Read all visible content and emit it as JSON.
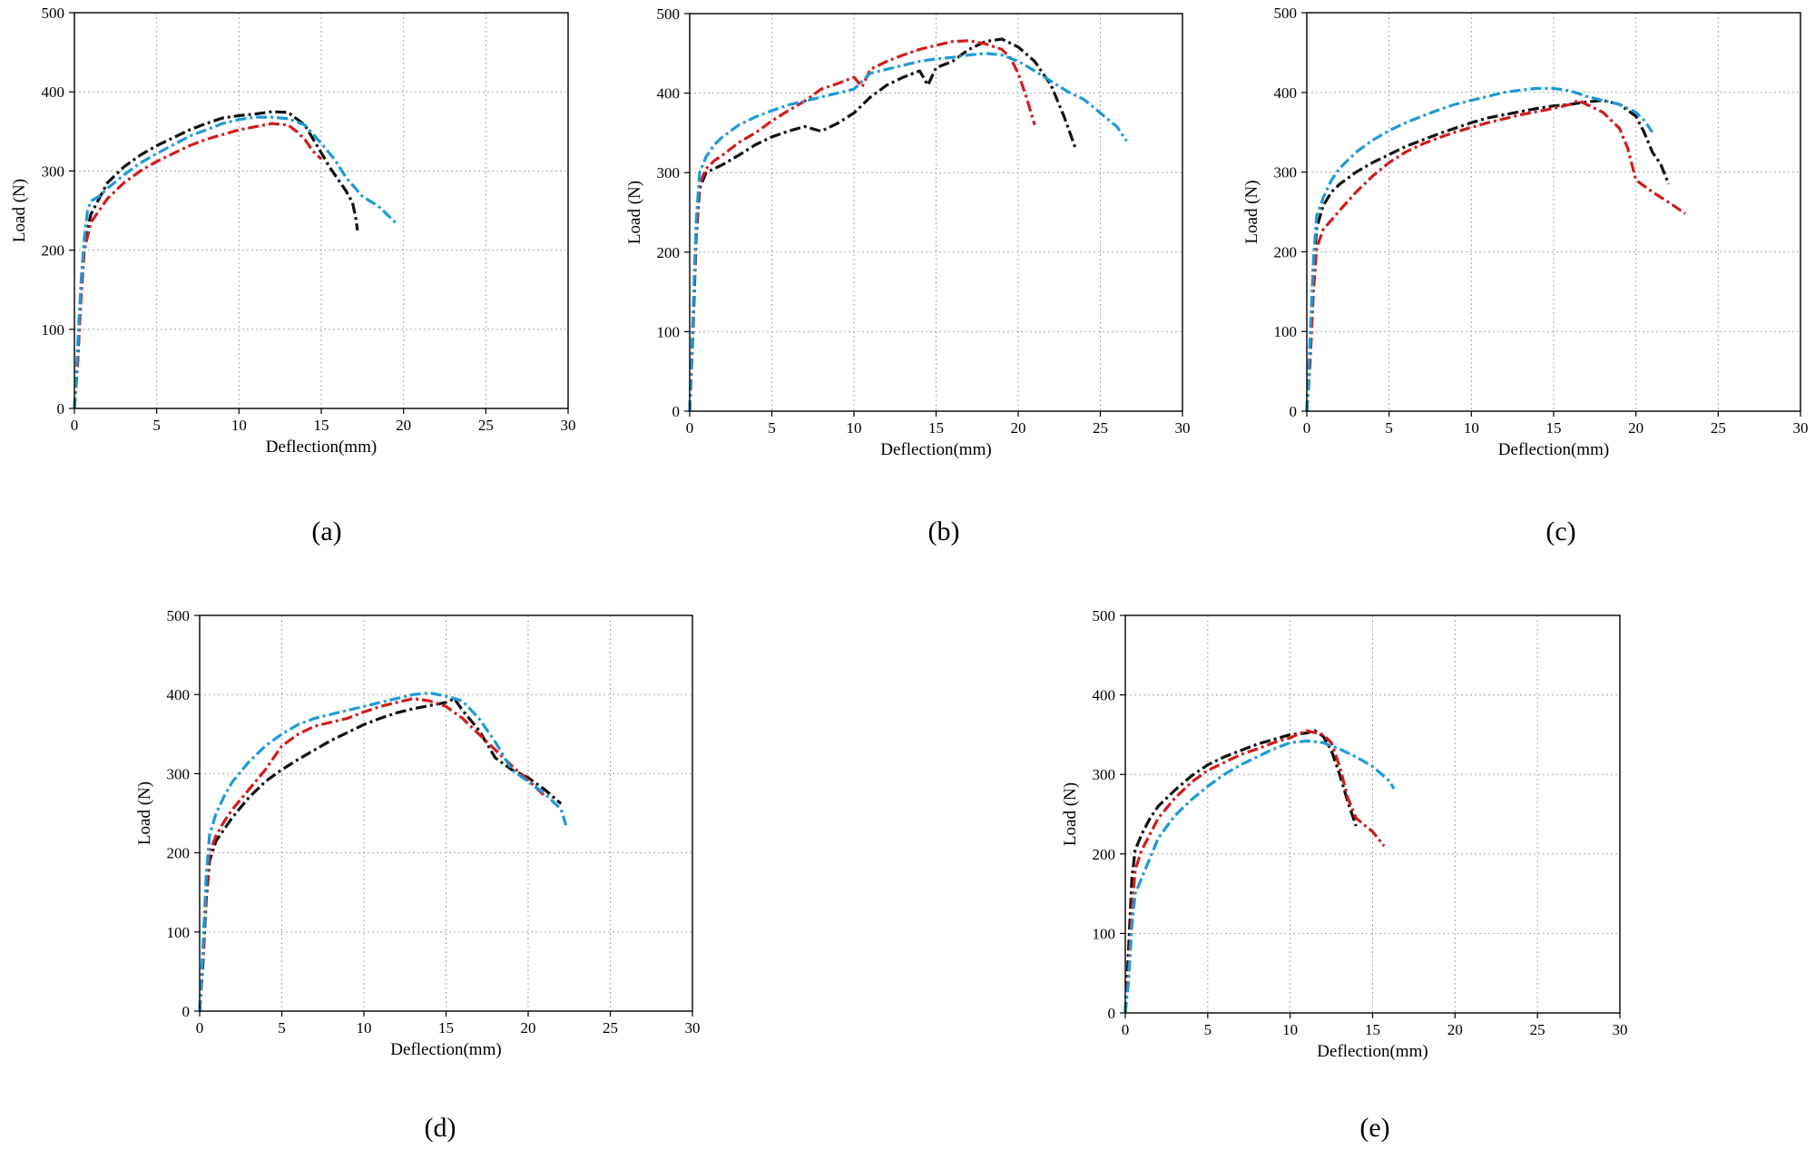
{
  "figure": {
    "colors": {
      "black": "#111111",
      "red": "#d01c1c",
      "blue": "#1e9ad6",
      "grid": "#a8a8a8"
    }
  },
  "chart_data": [
    {
      "type": "line",
      "label": "(a)",
      "xlabel": "Deflection(mm)",
      "ylabel": "Load (N)",
      "xlim": [
        0,
        30
      ],
      "ylim": [
        0,
        500
      ],
      "xticks": [
        0,
        5,
        10,
        15,
        20,
        25,
        30
      ],
      "yticks": [
        0,
        100,
        200,
        300,
        400,
        500
      ],
      "grid": true,
      "series": [
        {
          "name": "black",
          "color": "#111111",
          "style": "dashdot",
          "x": [
            0,
            0.2,
            0.4,
            0.6,
            1,
            1.5,
            2,
            3,
            4,
            5,
            6,
            7,
            8,
            9,
            10,
            11,
            12,
            13,
            14,
            14.8,
            15.5,
            16,
            16.5,
            16.9,
            17.1,
            17.2
          ],
          "y": [
            0,
            60,
            150,
            210,
            245,
            265,
            285,
            305,
            320,
            332,
            342,
            352,
            360,
            367,
            370,
            372,
            375,
            374,
            358,
            330,
            305,
            290,
            275,
            260,
            240,
            225
          ]
        },
        {
          "name": "red",
          "color": "#d01c1c",
          "style": "dashdot",
          "x": [
            0,
            0.2,
            0.4,
            0.6,
            1,
            1.5,
            2,
            3,
            4,
            5,
            6,
            7,
            8,
            9,
            10,
            11,
            12,
            13,
            13.5,
            14,
            14.5,
            15
          ],
          "y": [
            0,
            60,
            140,
            200,
            235,
            250,
            265,
            285,
            300,
            312,
            322,
            332,
            340,
            346,
            352,
            356,
            360,
            358,
            350,
            340,
            325,
            315
          ]
        },
        {
          "name": "blue",
          "color": "#1e9ad6",
          "style": "dashdot",
          "x": [
            0,
            0.2,
            0.4,
            0.6,
            0.8,
            1,
            1.5,
            2,
            3,
            4,
            5,
            6,
            7,
            8,
            9,
            10,
            11,
            12,
            13,
            14,
            15,
            15.8,
            16.5,
            17.5,
            18.5,
            19.5
          ],
          "y": [
            0,
            80,
            160,
            215,
            250,
            262,
            268,
            278,
            295,
            310,
            322,
            333,
            344,
            352,
            360,
            365,
            368,
            368,
            366,
            358,
            335,
            315,
            292,
            268,
            255,
            235
          ]
        }
      ]
    },
    {
      "type": "line",
      "label": "(b)",
      "xlabel": "Deflection(mm)",
      "ylabel": "Load (N)",
      "xlim": [
        0,
        30
      ],
      "ylim": [
        0,
        500
      ],
      "xticks": [
        0,
        5,
        10,
        15,
        20,
        25,
        30
      ],
      "yticks": [
        0,
        100,
        200,
        300,
        400,
        500
      ],
      "grid": true,
      "series": [
        {
          "name": "black",
          "color": "#111111",
          "style": "dashdot",
          "x": [
            0,
            0.2,
            0.4,
            0.6,
            1,
            1.5,
            2,
            3,
            4,
            5,
            6,
            7,
            8,
            9,
            10,
            11,
            12,
            13,
            14,
            14.5,
            15,
            16,
            17,
            18,
            19,
            20,
            21,
            22,
            22.8,
            23.5
          ],
          "y": [
            0,
            100,
            220,
            280,
            300,
            305,
            310,
            322,
            335,
            345,
            352,
            358,
            352,
            362,
            375,
            395,
            410,
            420,
            428,
            410,
            432,
            440,
            455,
            465,
            468,
            458,
            440,
            410,
            370,
            330
          ]
        },
        {
          "name": "red",
          "color": "#d01c1c",
          "style": "dashdot",
          "x": [
            0,
            0.2,
            0.4,
            0.6,
            1,
            1.5,
            2,
            3,
            4,
            5,
            6,
            7,
            8,
            9,
            10,
            10.5,
            11,
            12,
            13,
            14,
            15,
            16,
            17,
            18,
            19,
            19.5,
            20,
            20.5,
            21
          ],
          "y": [
            0,
            110,
            230,
            285,
            305,
            315,
            322,
            338,
            350,
            365,
            378,
            390,
            405,
            412,
            420,
            408,
            430,
            440,
            448,
            455,
            460,
            465,
            466,
            462,
            455,
            445,
            425,
            395,
            360
          ]
        },
        {
          "name": "blue",
          "color": "#1e9ad6",
          "style": "dashdot",
          "x": [
            0,
            0.2,
            0.4,
            0.6,
            1,
            1.5,
            2,
            3,
            4,
            5,
            6,
            7,
            8,
            9,
            10,
            11,
            12,
            13,
            14,
            15,
            16,
            17,
            18,
            19,
            20,
            21,
            22,
            23,
            24,
            25,
            26,
            26.6
          ],
          "y": [
            0,
            120,
            240,
            300,
            320,
            335,
            345,
            360,
            370,
            378,
            385,
            390,
            395,
            400,
            405,
            425,
            430,
            435,
            440,
            443,
            445,
            448,
            450,
            448,
            440,
            428,
            415,
            402,
            392,
            375,
            358,
            340
          ]
        }
      ]
    },
    {
      "type": "line",
      "label": "(c)",
      "xlabel": "Deflection(mm)",
      "ylabel": "Load (N)",
      "xlim": [
        0,
        30
      ],
      "ylim": [
        0,
        500
      ],
      "xticks": [
        0,
        5,
        10,
        15,
        20,
        25,
        30
      ],
      "yticks": [
        0,
        100,
        200,
        300,
        400,
        500
      ],
      "grid": true,
      "series": [
        {
          "name": "black",
          "color": "#111111",
          "style": "dashdot",
          "x": [
            0,
            0.2,
            0.4,
            0.6,
            1,
            1.5,
            2,
            3,
            4,
            5,
            6,
            7,
            8,
            9,
            10,
            11,
            12,
            13,
            14,
            15,
            16,
            17,
            18,
            19,
            20,
            20.5,
            21,
            21.5,
            22
          ],
          "y": [
            0,
            80,
            180,
            230,
            258,
            275,
            285,
            300,
            312,
            322,
            332,
            340,
            348,
            355,
            362,
            368,
            372,
            376,
            380,
            383,
            385,
            388,
            390,
            385,
            370,
            350,
            325,
            310,
            285
          ]
        },
        {
          "name": "red",
          "color": "#d01c1c",
          "style": "dashdot",
          "x": [
            0,
            0.2,
            0.4,
            0.6,
            1,
            1.5,
            2,
            3,
            4,
            5,
            6,
            7,
            8,
            9,
            10,
            11,
            12,
            13,
            14,
            15,
            16,
            16.5,
            17,
            18,
            19,
            19.5,
            20,
            21,
            22,
            23
          ],
          "y": [
            0,
            60,
            150,
            205,
            228,
            240,
            252,
            275,
            295,
            312,
            325,
            335,
            343,
            350,
            356,
            362,
            367,
            372,
            376,
            380,
            385,
            390,
            385,
            375,
            355,
            330,
            290,
            275,
            262,
            248
          ]
        },
        {
          "name": "blue",
          "color": "#1e9ad6",
          "style": "dashdot",
          "x": [
            0,
            0.2,
            0.4,
            0.6,
            1,
            1.5,
            2,
            3,
            4,
            5,
            6,
            7,
            8,
            9,
            10,
            11,
            12,
            13,
            14,
            15,
            16,
            17,
            18,
            19,
            20,
            20.5,
            21
          ],
          "y": [
            0,
            90,
            190,
            245,
            268,
            290,
            305,
            325,
            340,
            352,
            362,
            370,
            378,
            385,
            390,
            395,
            400,
            403,
            405,
            405,
            402,
            395,
            390,
            385,
            375,
            365,
            350
          ]
        }
      ]
    },
    {
      "type": "line",
      "label": "(d)",
      "xlabel": "Deflection(mm)",
      "ylabel": "Load (N)",
      "xlim": [
        0,
        30
      ],
      "ylim": [
        0,
        500
      ],
      "xticks": [
        0,
        5,
        10,
        15,
        20,
        25,
        30
      ],
      "yticks": [
        0,
        100,
        200,
        300,
        400,
        500
      ],
      "grid": true,
      "series": [
        {
          "name": "black",
          "color": "#111111",
          "style": "dashdot",
          "x": [
            0,
            0.2,
            0.4,
            0.6,
            1,
            1.5,
            2,
            3,
            4,
            5,
            6,
            7,
            8,
            9,
            10,
            11,
            12,
            13,
            14,
            15,
            15.5,
            16,
            17,
            18,
            19,
            20,
            21,
            22
          ],
          "y": [
            0,
            60,
            140,
            190,
            215,
            230,
            245,
            270,
            290,
            305,
            318,
            330,
            342,
            352,
            362,
            370,
            377,
            382,
            386,
            390,
            395,
            380,
            355,
            320,
            305,
            295,
            280,
            262
          ]
        },
        {
          "name": "red",
          "color": "#d01c1c",
          "style": "dashdot",
          "x": [
            0,
            0.2,
            0.4,
            0.6,
            1,
            1.5,
            2,
            3,
            4,
            5,
            6,
            7,
            8,
            9,
            10,
            11,
            12,
            13,
            14,
            15,
            16,
            17,
            18,
            19,
            20,
            21
          ],
          "y": [
            0,
            70,
            150,
            200,
            222,
            240,
            255,
            280,
            305,
            335,
            350,
            360,
            365,
            370,
            378,
            385,
            390,
            395,
            392,
            385,
            370,
            350,
            330,
            310,
            292,
            272
          ]
        },
        {
          "name": "blue",
          "color": "#1e9ad6",
          "style": "dashdot",
          "x": [
            0,
            0.2,
            0.4,
            0.6,
            1,
            1.5,
            2,
            3,
            4,
            5,
            6,
            7,
            8,
            9,
            10,
            11,
            12,
            13,
            14,
            15,
            16,
            17,
            18,
            19,
            20,
            21,
            22,
            22.3
          ],
          "y": [
            0,
            80,
            170,
            222,
            250,
            272,
            290,
            315,
            335,
            350,
            362,
            370,
            375,
            380,
            385,
            390,
            395,
            400,
            402,
            398,
            392,
            370,
            340,
            305,
            290,
            275,
            255,
            235
          ]
        }
      ]
    },
    {
      "type": "line",
      "label": "(e)",
      "xlabel": "Deflection(mm)",
      "ylabel": "Load (N)",
      "xlim": [
        0,
        30
      ],
      "ylim": [
        0,
        500
      ],
      "xticks": [
        0,
        5,
        10,
        15,
        20,
        25,
        30
      ],
      "yticks": [
        0,
        100,
        200,
        300,
        400,
        500
      ],
      "grid": true,
      "series": [
        {
          "name": "black",
          "color": "#111111",
          "style": "dashdot",
          "x": [
            0,
            0.2,
            0.4,
            0.6,
            1,
            1.5,
            2,
            3,
            4,
            5,
            6,
            7,
            8,
            9,
            10,
            11,
            11.5,
            12,
            12.5,
            13,
            13.5,
            14
          ],
          "y": [
            0,
            80,
            170,
            205,
            225,
            245,
            260,
            280,
            298,
            312,
            322,
            330,
            338,
            344,
            350,
            352,
            355,
            348,
            330,
            300,
            265,
            235
          ]
        },
        {
          "name": "red",
          "color": "#d01c1c",
          "style": "dashdot",
          "x": [
            0,
            0.2,
            0.4,
            0.6,
            1,
            1.5,
            2,
            3,
            4,
            5,
            6,
            7,
            8,
            9,
            10,
            11,
            12,
            12.5,
            13,
            13.5,
            14,
            15,
            15.7
          ],
          "y": [
            0,
            50,
            130,
            180,
            205,
            225,
            245,
            270,
            290,
            305,
            315,
            325,
            332,
            340,
            346,
            355,
            350,
            340,
            310,
            270,
            245,
            228,
            210
          ]
        },
        {
          "name": "blue",
          "color": "#1e9ad6",
          "style": "dashdot",
          "x": [
            0,
            0.2,
            0.4,
            0.6,
            1,
            1.5,
            2,
            3,
            4,
            5,
            6,
            7,
            8,
            9,
            10,
            11,
            12,
            13,
            14,
            15,
            16,
            16.3
          ],
          "y": [
            0,
            40,
            110,
            150,
            170,
            195,
            220,
            248,
            268,
            285,
            300,
            312,
            322,
            332,
            340,
            342,
            340,
            332,
            322,
            310,
            292,
            282
          ]
        }
      ]
    }
  ]
}
